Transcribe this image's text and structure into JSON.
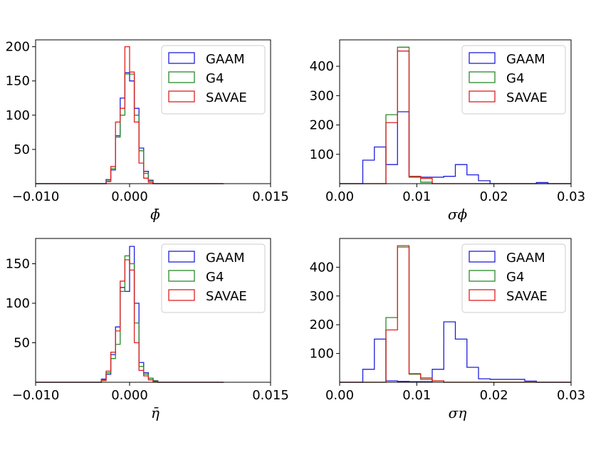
{
  "figure": {
    "series_colors": {
      "GAAM": "#1f1fdd",
      "G4": "#2a8a2a",
      "SAVAE": "#e02020"
    }
  },
  "chart_data": [
    {
      "type": "histogram",
      "panel": "phi-mean",
      "xlabel": "ϕ̄",
      "xlim": [
        -0.01,
        0.015
      ],
      "ylim": [
        0,
        210
      ],
      "xticks": [
        -0.01,
        0.0,
        0.015
      ],
      "xtick_labels": [
        "−0.010",
        "0.000",
        "0.015"
      ],
      "yticks": [
        50,
        100,
        150,
        200
      ],
      "ytick_labels": [
        "50",
        "100",
        "150",
        "200"
      ],
      "bin_edges": [
        -0.01,
        -0.0025,
        -0.002,
        -0.0015,
        -0.001,
        -0.0005,
        0.0,
        0.0005,
        0.001,
        0.0015,
        0.002,
        0.0025,
        0.003,
        0.01
      ],
      "legend": {
        "location": "top-right",
        "entries": [
          "GAAM",
          "G4",
          "SAVAE"
        ]
      },
      "series": [
        {
          "name": "GAAM",
          "values": [
            0,
            6,
            20,
            70,
            125,
            162,
            150,
            110,
            52,
            18,
            5,
            0,
            0
          ]
        },
        {
          "name": "G4",
          "values": [
            0,
            4,
            22,
            68,
            100,
            160,
            160,
            100,
            48,
            15,
            4,
            0,
            0
          ]
        },
        {
          "name": "SAVAE",
          "values": [
            0,
            3,
            25,
            90,
            110,
            200,
            163,
            90,
            30,
            8,
            2,
            0,
            0
          ]
        }
      ]
    },
    {
      "type": "histogram",
      "panel": "phi-sigma",
      "xlabel": "σϕ",
      "xlim": [
        0.0,
        0.03
      ],
      "ylim": [
        0,
        490
      ],
      "xticks": [
        0.0,
        0.01,
        0.02,
        0.03
      ],
      "xtick_labels": [
        "0.00",
        "0.01",
        "0.02",
        "0.03"
      ],
      "yticks": [
        100,
        200,
        300,
        400
      ],
      "ytick_labels": [
        "100",
        "200",
        "300",
        "400"
      ],
      "bin_edges": [
        0.0,
        0.003,
        0.0045,
        0.006,
        0.0075,
        0.009,
        0.0105,
        0.012,
        0.0135,
        0.015,
        0.0165,
        0.018,
        0.0195,
        0.021,
        0.0255,
        0.027,
        0.03
      ],
      "legend": {
        "location": "top-right",
        "entries": [
          "GAAM",
          "G4",
          "SAVAE"
        ]
      },
      "series": [
        {
          "name": "GAAM",
          "values": [
            0,
            80,
            125,
            65,
            245,
            25,
            22,
            22,
            25,
            65,
            30,
            10,
            0,
            0,
            4,
            0
          ]
        },
        {
          "name": "G4",
          "values": [
            0,
            0,
            0,
            235,
            465,
            22,
            5,
            0,
            0,
            0,
            0,
            0,
            0,
            0,
            0,
            0
          ]
        },
        {
          "name": "SAVAE",
          "values": [
            0,
            0,
            0,
            208,
            452,
            25,
            18,
            0,
            0,
            0,
            0,
            0,
            0,
            0,
            0,
            0
          ]
        }
      ]
    },
    {
      "type": "histogram",
      "panel": "eta-mean",
      "xlabel": "η̄",
      "xlim": [
        -0.01,
        0.015
      ],
      "ylim": [
        0,
        182
      ],
      "xticks": [
        -0.01,
        0.0,
        0.015
      ],
      "xtick_labels": [
        "−0.010",
        "0.000",
        "0.015"
      ],
      "yticks": [
        50,
        100,
        150
      ],
      "ytick_labels": [
        "50",
        "100",
        "150"
      ],
      "bin_edges": [
        -0.01,
        -0.003,
        -0.0025,
        -0.002,
        -0.0015,
        -0.001,
        -0.0005,
        0.0,
        0.0005,
        0.001,
        0.0015,
        0.002,
        0.0025,
        0.003,
        0.0035,
        0.01
      ],
      "legend": {
        "location": "top-right",
        "entries": [
          "GAAM",
          "G4",
          "SAVAE"
        ]
      },
      "series": [
        {
          "name": "GAAM",
          "values": [
            0,
            4,
            10,
            35,
            70,
            120,
            115,
            172,
            100,
            25,
            12,
            5,
            2,
            0,
            0
          ]
        },
        {
          "name": "G4",
          "values": [
            0,
            3,
            12,
            30,
            48,
            115,
            160,
            150,
            75,
            20,
            10,
            5,
            2,
            0,
            0
          ]
        },
        {
          "name": "SAVAE",
          "values": [
            0,
            2,
            14,
            38,
            65,
            128,
            155,
            142,
            50,
            15,
            8,
            3,
            1,
            0,
            0
          ]
        }
      ]
    },
    {
      "type": "histogram",
      "panel": "eta-sigma",
      "xlabel": "ση",
      "xlim": [
        0.0,
        0.03
      ],
      "ylim": [
        0,
        500
      ],
      "xticks": [
        0.0,
        0.01,
        0.02,
        0.03
      ],
      "xtick_labels": [
        "0.00",
        "0.01",
        "0.02",
        "0.03"
      ],
      "yticks": [
        100,
        200,
        300,
        400
      ],
      "ytick_labels": [
        "100",
        "200",
        "300",
        "400"
      ],
      "bin_edges": [
        0.0,
        0.003,
        0.0045,
        0.006,
        0.0075,
        0.009,
        0.0105,
        0.012,
        0.0135,
        0.015,
        0.0165,
        0.018,
        0.0195,
        0.021,
        0.024,
        0.0255,
        0.027,
        0.03
      ],
      "legend": {
        "location": "top-right",
        "entries": [
          "GAAM",
          "G4",
          "SAVAE"
        ]
      },
      "series": [
        {
          "name": "GAAM",
          "values": [
            0,
            45,
            150,
            5,
            3,
            2,
            2,
            45,
            210,
            150,
            52,
            12,
            10,
            10,
            4,
            0,
            0
          ]
        },
        {
          "name": "G4",
          "values": [
            0,
            0,
            0,
            225,
            470,
            28,
            10,
            5,
            0,
            0,
            0,
            0,
            0,
            0,
            0,
            0,
            0
          ]
        },
        {
          "name": "SAVAE",
          "values": [
            0,
            0,
            0,
            182,
            475,
            30,
            15,
            5,
            0,
            0,
            0,
            0,
            0,
            0,
            0,
            0,
            0
          ]
        }
      ]
    }
  ]
}
